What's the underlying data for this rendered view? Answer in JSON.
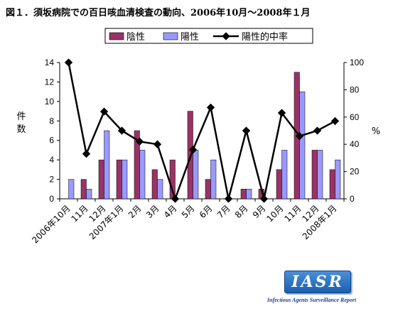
{
  "title": "図１．須坂病院での百日咳血清検査の動向、2006年10月～2008年１月",
  "brand": {
    "logo_text": "IASR",
    "subtitle": "Infectious Agents Surveillance Report"
  },
  "colors": {
    "negative": "#993366",
    "positive": "#9999ff",
    "line": "#000000"
  },
  "chart_data": {
    "type": "bar",
    "categories": [
      "2006年10月",
      "11月",
      "12月",
      "2007年1月",
      "2月",
      "3月",
      "4月",
      "5月",
      "6月",
      "7月",
      "8月",
      "9月",
      "10月",
      "11月",
      "12月",
      "2008年1月"
    ],
    "series": [
      {
        "name": "陰性",
        "type": "bar",
        "axis": "left",
        "values": [
          0,
          2,
          4,
          4,
          7,
          3,
          4,
          9,
          2,
          0,
          1,
          1,
          3,
          13,
          5,
          3
        ]
      },
      {
        "name": "陽性",
        "type": "bar",
        "axis": "left",
        "values": [
          2,
          1,
          7,
          4,
          5,
          2,
          0,
          5,
          4,
          0,
          1,
          0,
          5,
          11,
          5,
          4
        ]
      },
      {
        "name": "陽性的中率",
        "type": "line",
        "axis": "right",
        "values": [
          100,
          33,
          64,
          50,
          42,
          40,
          0,
          36,
          67,
          0,
          50,
          0,
          63,
          46,
          50,
          57
        ]
      }
    ],
    "ylabel_left": "件数",
    "ylabel_right": "%",
    "ylim_left": [
      0,
      14
    ],
    "ylim_right": [
      0,
      100
    ],
    "yticks_left": [
      0,
      2,
      4,
      6,
      8,
      10,
      12,
      14
    ],
    "yticks_right": [
      0,
      20,
      40,
      60,
      80,
      100
    ],
    "legend": "top",
    "grid": false
  }
}
